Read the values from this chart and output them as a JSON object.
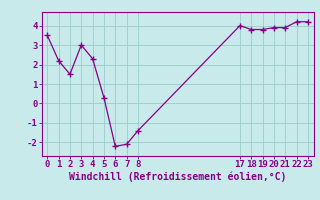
{
  "x_values": [
    0,
    1,
    2,
    3,
    4,
    5,
    6,
    7,
    8,
    17,
    18,
    19,
    20,
    21,
    22,
    23
  ],
  "y_values": [
    3.5,
    2.2,
    1.5,
    3.0,
    2.3,
    0.3,
    -2.2,
    -2.1,
    -1.4,
    4.0,
    3.8,
    3.8,
    3.9,
    3.9,
    4.2,
    4.2
  ],
  "x_ticks": [
    0,
    1,
    2,
    3,
    4,
    5,
    6,
    7,
    8,
    17,
    18,
    19,
    20,
    21,
    22,
    23
  ],
  "y_ticks": [
    -2,
    -1,
    0,
    1,
    2,
    3,
    4
  ],
  "xlim": [
    -0.5,
    23.5
  ],
  "ylim": [
    -2.7,
    4.7
  ],
  "xlabel": "Windchill (Refroidissement éolien,°C)",
  "line_color": "#880088",
  "marker": "+",
  "marker_size": 5,
  "marker_color": "#880088",
  "bg_color": "#c8eaea",
  "grid_color": "#99cccc",
  "axis_color": "#880088",
  "tick_color": "#880088",
  "label_fontsize": 7,
  "tick_fontsize": 6.5
}
